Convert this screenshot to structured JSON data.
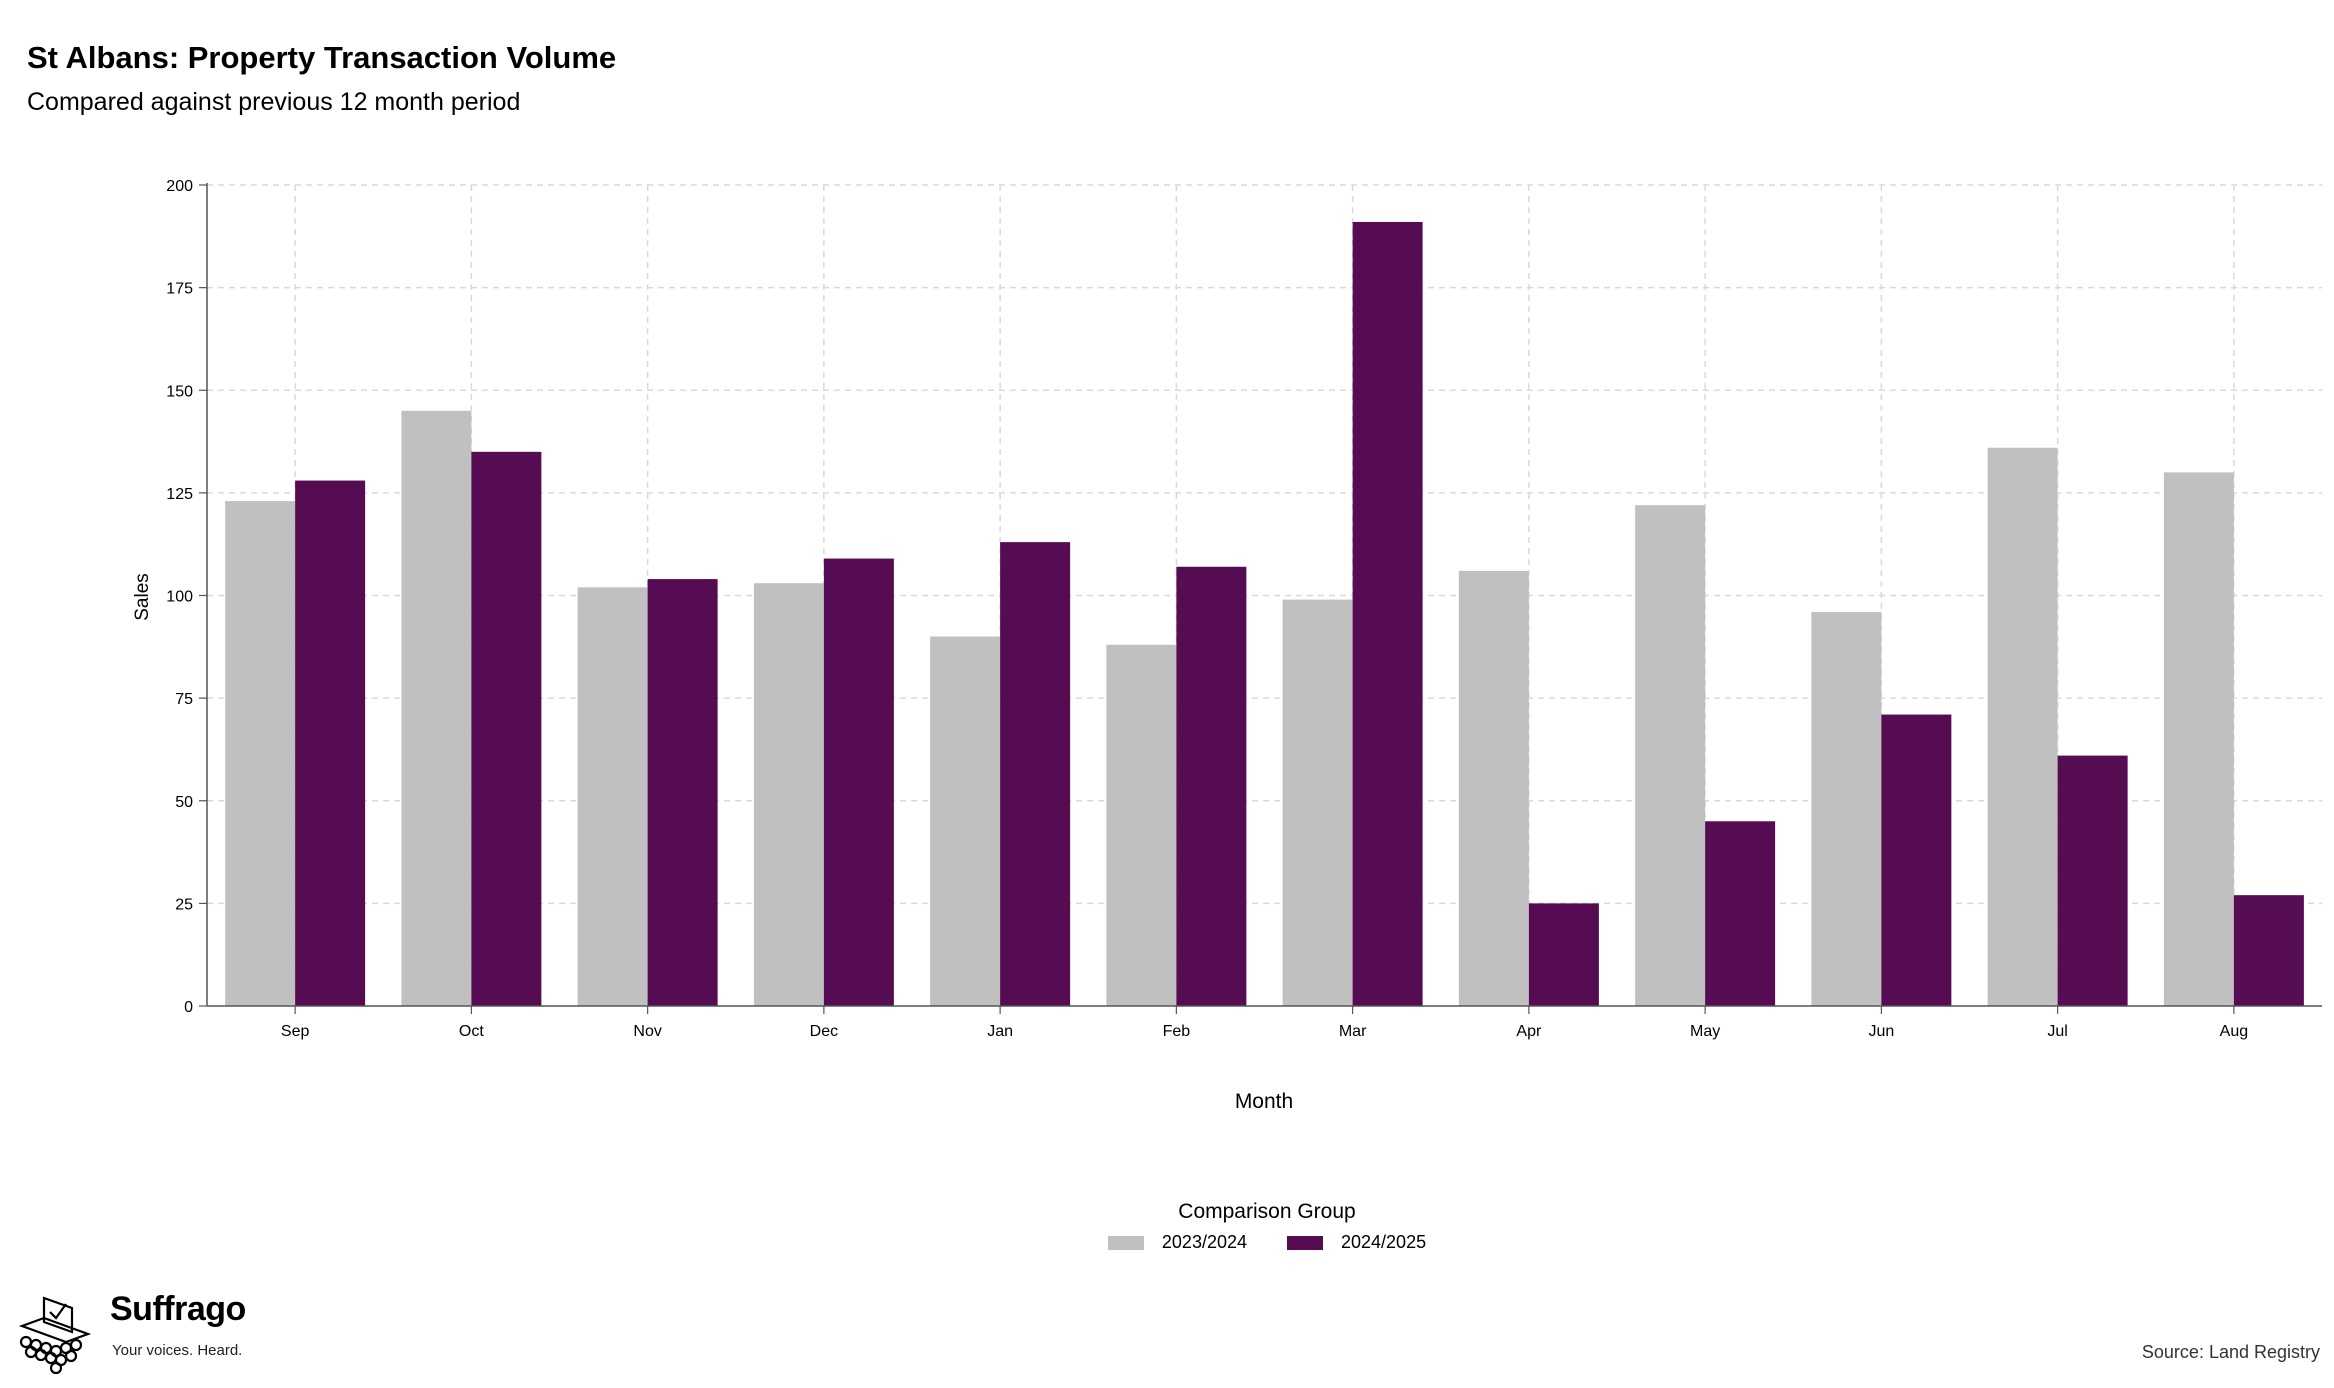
{
  "header": {
    "title": "St Albans: Property Transaction Volume",
    "subtitle": "Compared against previous 12 month period"
  },
  "chart_data": {
    "type": "bar",
    "xlabel": "Month",
    "ylabel": "Sales",
    "ylim": [
      0,
      200
    ],
    "yticks": [
      0,
      25,
      50,
      75,
      100,
      125,
      150,
      175,
      200
    ],
    "grid": true,
    "categories": [
      "Sep",
      "Oct",
      "Nov",
      "Dec",
      "Jan",
      "Feb",
      "Mar",
      "Apr",
      "May",
      "Jun",
      "Jul",
      "Aug"
    ],
    "series": [
      {
        "name": "2023/2024",
        "color": "#c0c0c0",
        "values": [
          123,
          145,
          102,
          103,
          90,
          88,
          99,
          106,
          122,
          96,
          136,
          130
        ]
      },
      {
        "name": "2024/2025",
        "color": "#560c52",
        "values": [
          128,
          135,
          104,
          109,
          113,
          107,
          191,
          25,
          45,
          71,
          61,
          27
        ]
      }
    ],
    "legend": {
      "title": "Comparison Group",
      "position": "bottom"
    }
  },
  "branding": {
    "name": "Suffrago",
    "tagline": "Your voices. Heard."
  },
  "footer": {
    "source": "Source: Land Registry"
  }
}
